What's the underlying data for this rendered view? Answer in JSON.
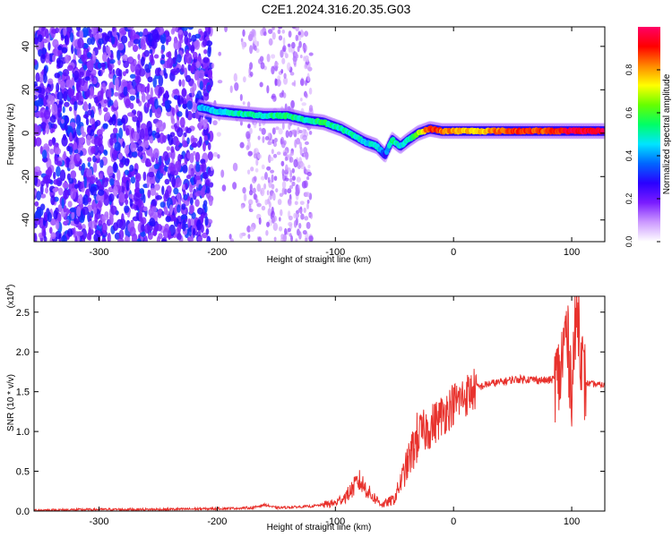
{
  "title": "C2E1.2024.316.20.35.G03",
  "chart_data": [
    {
      "type": "heatmap",
      "title": "C2E1.2024.316.20.35.G03",
      "xlabel": "Height of straight line (km)",
      "ylabel": "Frequency (Hz)",
      "xlim": [
        -355,
        128
      ],
      "ylim": [
        -50,
        49
      ],
      "xticks": [
        -300,
        -200,
        -100,
        0,
        100
      ],
      "yticks": [
        -40,
        -20,
        0,
        20,
        40
      ],
      "colorbar": {
        "label": "Normalized spectral amplitude",
        "range": [
          0,
          1
        ],
        "ticks": [
          "0.0",
          "0.2",
          "0.4",
          "0.6",
          "0.8"
        ],
        "colors": [
          "#ffffff",
          "#cc99ff",
          "#7a1cff",
          "#2a00ff",
          "#0066ff",
          "#00e5ff",
          "#00ff66",
          "#66ff00",
          "#ffff00",
          "#ff8800",
          "#ff0000",
          "#ff0066"
        ]
      },
      "noise_region": [
        -355,
        -120
      ],
      "ridge": {
        "x": [
          -215,
          -200,
          -180,
          -160,
          -140,
          -125,
          -110,
          -95,
          -85,
          -75,
          -65,
          -58,
          -52,
          -45,
          -38,
          -30,
          -20,
          -10,
          0,
          20,
          40,
          60,
          80,
          100,
          128
        ],
        "y": [
          12,
          10,
          9,
          8,
          8,
          6,
          5,
          2,
          -1,
          -4,
          -6,
          -10,
          -3,
          -6,
          -3,
          0,
          2,
          1,
          1,
          1,
          1,
          1,
          1,
          1,
          1
        ],
        "amplitude": [
          0.4,
          0.45,
          0.5,
          0.5,
          0.55,
          0.5,
          0.55,
          0.5,
          0.5,
          0.45,
          0.5,
          0.3,
          0.55,
          0.45,
          0.5,
          0.65,
          0.9,
          0.85,
          0.8,
          0.75,
          0.85,
          0.9,
          0.85,
          0.95,
          0.95
        ]
      }
    },
    {
      "type": "line",
      "xlabel": "Height of straight line (km)",
      "ylabel": "SNR (10 * v/v)",
      "exponent_label": "(x10",
      "exponent_sup": "4",
      "exponent_close": ")",
      "xlim": [
        -355,
        128
      ],
      "ylim": [
        0,
        2.7
      ],
      "xticks": [
        -300,
        -200,
        -100,
        0,
        100
      ],
      "yticks": [
        "0.0",
        "0.5",
        "1.0",
        "1.5",
        "2.0",
        "2.5"
      ],
      "series_color": "#e8322d",
      "series": [
        {
          "x": [
            -355,
            -300,
            -250,
            -200,
            -170,
            -160,
            -150,
            -120,
            -100,
            -90,
            -80,
            -75,
            -70,
            -60,
            -50,
            -45,
            -40,
            -35,
            -30,
            -20,
            -10,
            0,
            10,
            20,
            30,
            40,
            50,
            60,
            70,
            80,
            90,
            95,
            100,
            105,
            110,
            115,
            128
          ],
          "y": [
            0.01,
            0.02,
            0.02,
            0.03,
            0.04,
            0.08,
            0.04,
            0.06,
            0.1,
            0.2,
            0.38,
            0.3,
            0.2,
            0.08,
            0.15,
            0.35,
            0.55,
            0.75,
            0.95,
            1.05,
            1.2,
            1.35,
            1.45,
            1.55,
            1.6,
            1.62,
            1.65,
            1.66,
            1.65,
            1.64,
            1.68,
            2.3,
            1.6,
            2.6,
            1.62,
            1.6,
            1.58
          ]
        }
      ]
    }
  ]
}
